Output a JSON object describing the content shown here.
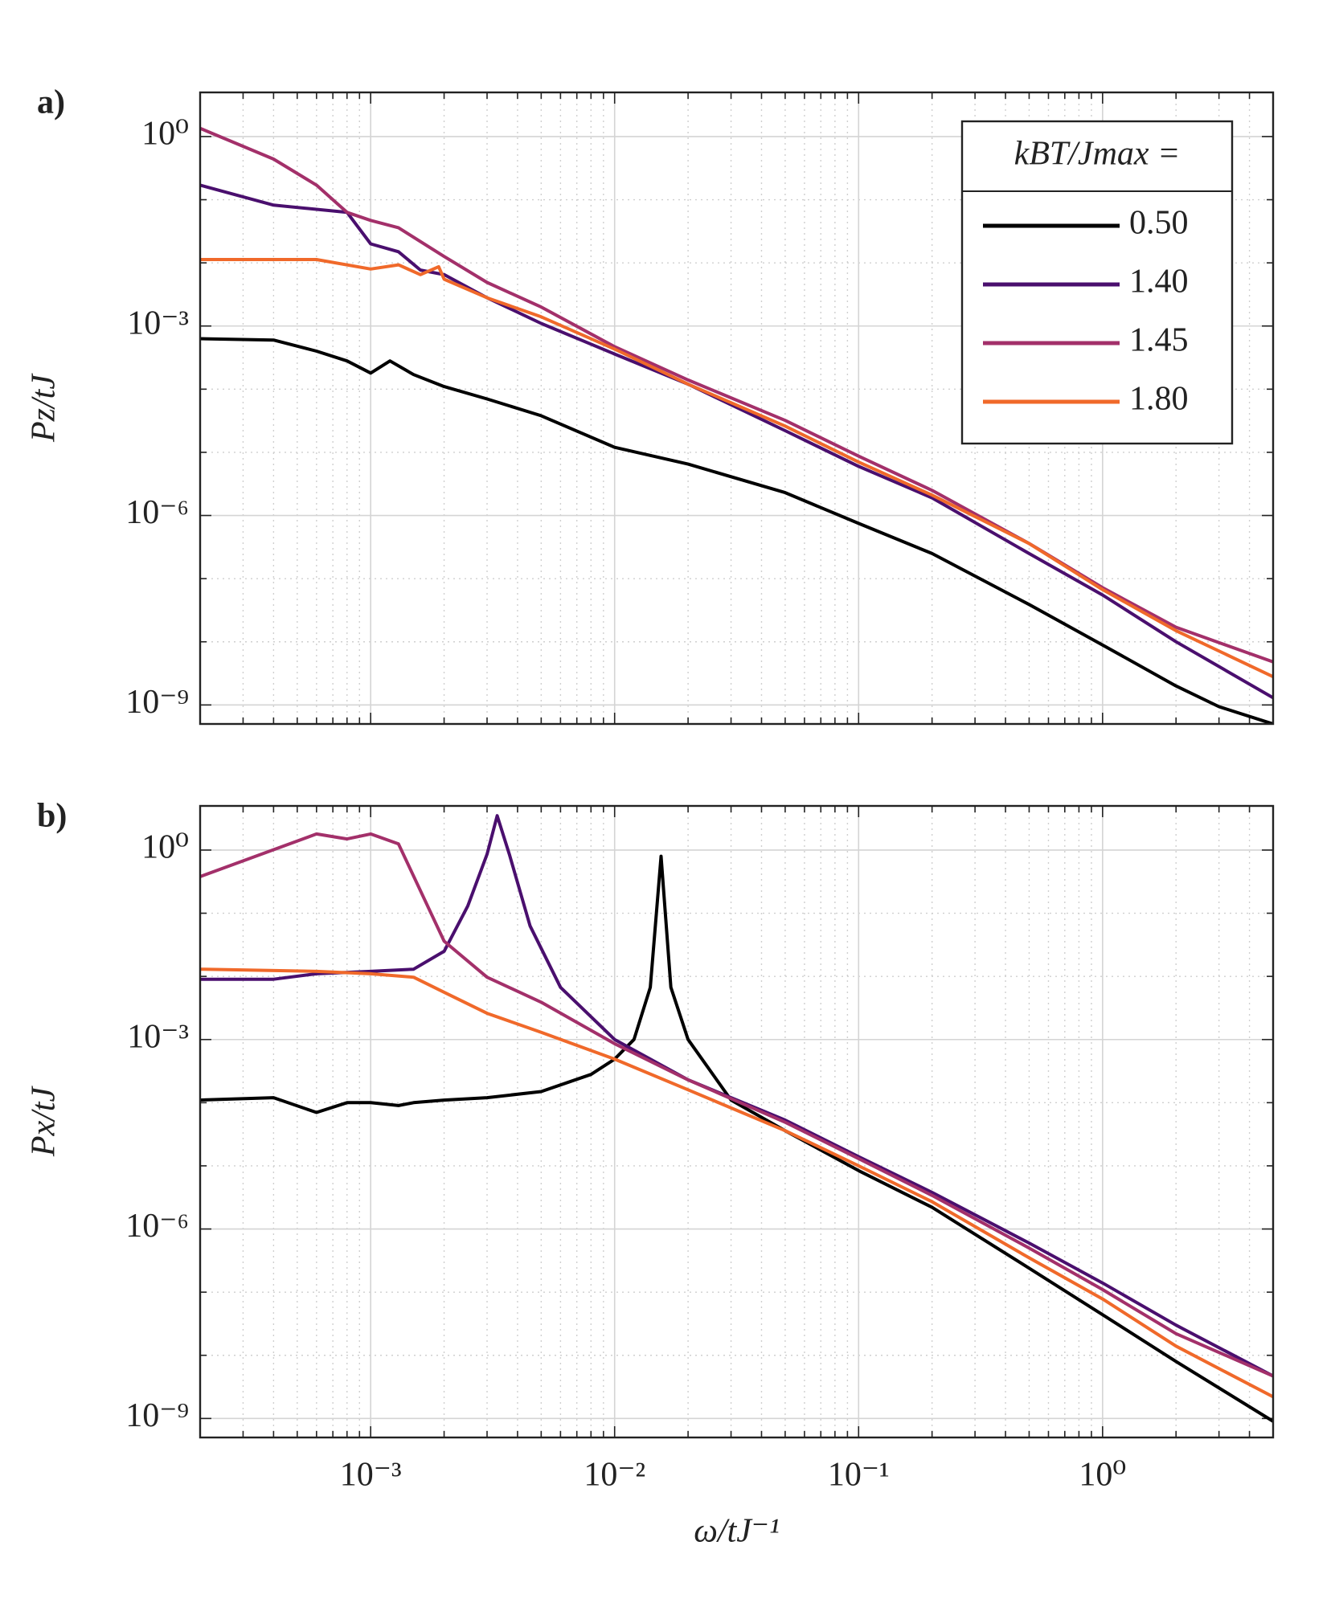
{
  "chart_data": [
    {
      "type": "line",
      "panel_label": "a)",
      "y_label": "Pz/tJ",
      "log_x": true,
      "log_y": true,
      "grid": true,
      "minor_grid": true,
      "xlim": [
        0.0002,
        5
      ],
      "ylim": [
        5e-10,
        5
      ],
      "xticks": [
        0.001,
        0.01,
        0.1,
        1
      ],
      "yticks": [
        {
          "value": 1,
          "label": "10⁰"
        },
        {
          "value": 0.001,
          "label": "10⁻³"
        },
        {
          "value": 1e-06,
          "label": "10⁻⁶"
        },
        {
          "value": 1e-09,
          "label": "10⁻⁹"
        }
      ],
      "legend": "upper right",
      "legend_title": "kBT/Jmax =",
      "series": [
        {
          "name": "0.50",
          "color": "#000000",
          "x": [
            0.0002,
            0.0004,
            0.0006,
            0.0008,
            0.001,
            0.0012,
            0.0015,
            0.002,
            0.003,
            0.005,
            0.01,
            0.02,
            0.05,
            0.1,
            0.2,
            0.5,
            1,
            2,
            3,
            5
          ],
          "values": [
            0.00063,
            0.0006,
            0.0004,
            0.00028,
            0.00018,
            0.00028,
            0.00017,
            0.00011,
            7e-05,
            3.8e-05,
            1.2e-05,
            6.5e-06,
            2.3e-06,
            7.5e-07,
            2.5e-07,
            3.9e-08,
            8.9e-09,
            2e-09,
            9.4e-10,
            5e-10
          ]
        },
        {
          "name": "1.40",
          "color": "#4a0f6e",
          "x": [
            0.0002,
            0.0004,
            0.0008,
            0.001,
            0.0013,
            0.0016,
            0.002,
            0.003,
            0.005,
            0.01,
            0.02,
            0.05,
            0.1,
            0.2,
            0.5,
            1,
            2,
            5
          ],
          "values": [
            0.17,
            0.082,
            0.063,
            0.02,
            0.015,
            0.0077,
            0.0065,
            0.0028,
            0.0011,
            0.00036,
            0.00012,
            2.2e-05,
            6e-06,
            1.9e-06,
            2.5e-07,
            5.5e-08,
            1e-08,
            1.3e-09
          ]
        },
        {
          "name": "1.45",
          "color": "#a3306a",
          "x": [
            0.0002,
            0.0004,
            0.0006,
            0.0008,
            0.001,
            0.0013,
            0.002,
            0.003,
            0.005,
            0.01,
            0.02,
            0.05,
            0.1,
            0.2,
            0.5,
            1,
            2,
            5
          ],
          "values": [
            1.35,
            0.44,
            0.17,
            0.063,
            0.047,
            0.036,
            0.0126,
            0.0049,
            0.002,
            0.00047,
            0.00014,
            3.2e-05,
            8.7e-06,
            2.5e-06,
            3.6e-07,
            7.2e-08,
            1.7e-08,
            4.8e-09
          ]
        },
        {
          "name": "1.80",
          "color": "#f0692a",
          "x": [
            0.0002,
            0.0006,
            0.001,
            0.0013,
            0.0016,
            0.0019,
            0.002,
            0.003,
            0.005,
            0.01,
            0.02,
            0.05,
            0.1,
            0.2,
            0.5,
            1,
            2,
            5
          ],
          "values": [
            0.0113,
            0.0113,
            0.008,
            0.0093,
            0.0065,
            0.0087,
            0.0055,
            0.0028,
            0.0014,
            0.00043,
            0.00012,
            2.6e-05,
            7e-06,
            2.1e-06,
            3.6e-07,
            6.7e-08,
            1.5e-08,
            2.8e-09
          ]
        }
      ]
    },
    {
      "type": "line",
      "panel_label": "b)",
      "y_label": "Px/tJ",
      "x_label": "ω/tJ⁻¹",
      "log_x": true,
      "log_y": true,
      "grid": true,
      "minor_grid": true,
      "xlim": [
        0.0002,
        5
      ],
      "ylim": [
        5e-10,
        5
      ],
      "xticks": [
        {
          "value": 0.001,
          "label": "10⁻³"
        },
        {
          "value": 0.01,
          "label": "10⁻²"
        },
        {
          "value": 0.1,
          "label": "10⁻¹"
        },
        {
          "value": 1,
          "label": "10⁰"
        }
      ],
      "yticks": [
        {
          "value": 1,
          "label": "10⁰"
        },
        {
          "value": 0.001,
          "label": "10⁻³"
        },
        {
          "value": 1e-06,
          "label": "10⁻⁶"
        },
        {
          "value": 1e-09,
          "label": "10⁻⁹"
        }
      ],
      "series": [
        {
          "color": "#000000",
          "x": [
            0.0002,
            0.0004,
            0.0006,
            0.0008,
            0.001,
            0.0013,
            0.0015,
            0.002,
            0.003,
            0.005,
            0.008,
            0.01,
            0.012,
            0.014,
            0.0155,
            0.017,
            0.02,
            0.03,
            0.05,
            0.1,
            0.2,
            0.5,
            1,
            2,
            5
          ],
          "values": [
            0.00011,
            0.00012,
            7e-05,
            0.0001,
            0.0001,
            9e-05,
            0.0001,
            0.00011,
            0.00012,
            0.00015,
            0.00028,
            0.00049,
            0.001,
            0.0067,
            0.8,
            0.0067,
            0.001,
            0.00011,
            3.6e-05,
            8.4e-06,
            2.2e-06,
            2.4e-07,
            4.4e-08,
            8e-09,
            9e-10
          ]
        },
        {
          "color": "#4a0f6e",
          "x": [
            0.0002,
            0.0004,
            0.0006,
            0.001,
            0.0015,
            0.002,
            0.0025,
            0.003,
            0.0033,
            0.0037,
            0.0045,
            0.006,
            0.01,
            0.02,
            0.05,
            0.1,
            0.2,
            0.5,
            1,
            2,
            5
          ],
          "values": [
            0.009,
            0.009,
            0.011,
            0.012,
            0.013,
            0.025,
            0.13,
            0.86,
            3.5,
            0.86,
            0.063,
            0.0067,
            0.001,
            0.00023,
            5.3e-05,
            1.4e-05,
            3.8e-06,
            6e-07,
            1.4e-07,
            3e-08,
            4.7e-09
          ]
        },
        {
          "color": "#a3306a",
          "x": [
            0.0002,
            0.0006,
            0.0008,
            0.001,
            0.0013,
            0.002,
            0.003,
            0.005,
            0.01,
            0.02,
            0.05,
            0.1,
            0.2,
            0.5,
            1,
            2,
            5
          ],
          "values": [
            0.38,
            1.8,
            1.5,
            1.8,
            1.25,
            0.036,
            0.0097,
            0.0039,
            0.00086,
            0.00023,
            4.9e-05,
            1.3e-05,
            3.4e-06,
            5e-07,
            1.1e-07,
            2.2e-08,
            4.7e-09
          ]
        },
        {
          "color": "#f0692a",
          "x": [
            0.0002,
            0.0006,
            0.001,
            0.0015,
            0.002,
            0.003,
            0.005,
            0.01,
            0.02,
            0.05,
            0.1,
            0.2,
            0.5,
            1,
            2,
            5
          ],
          "values": [
            0.013,
            0.012,
            0.011,
            0.0097,
            0.0056,
            0.0026,
            0.0013,
            0.00049,
            0.00016,
            3.6e-05,
            1e-05,
            2.7e-06,
            3.5e-07,
            7.8e-08,
            1.4e-08,
            2.2e-09
          ]
        }
      ]
    }
  ]
}
